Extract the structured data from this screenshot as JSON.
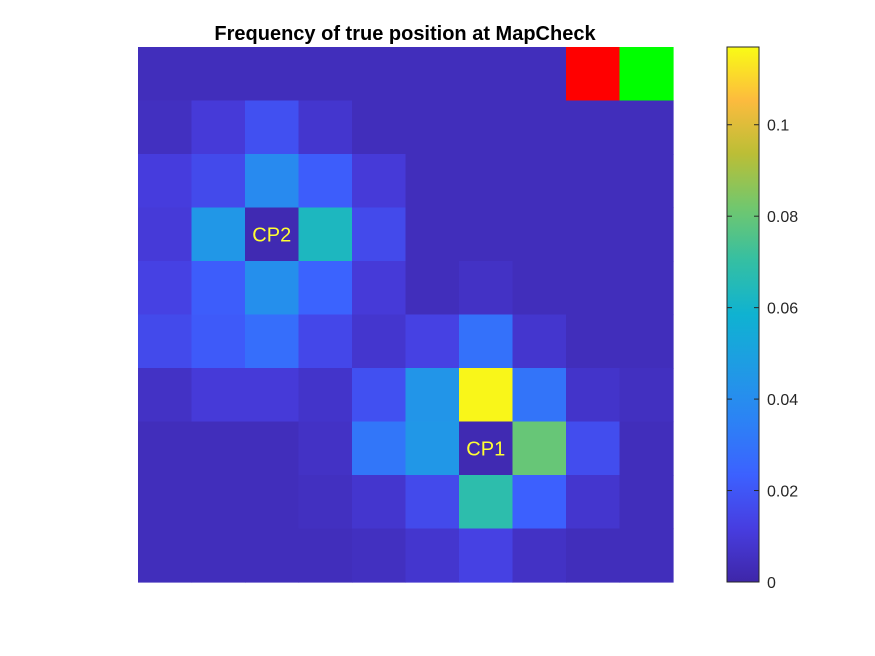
{
  "chart_data": {
    "type": "heatmap",
    "title": "Frequency of true position at MapCheck",
    "xlabel": "",
    "ylabel": "",
    "rows": 10,
    "cols": 10,
    "values": [
      [
        0.004,
        0.004,
        0.004,
        0.004,
        0.004,
        0.004,
        0.004,
        0.004,
        null,
        null
      ],
      [
        0.005,
        0.01,
        0.018,
        0.008,
        0.004,
        0.004,
        0.004,
        0.004,
        0.004,
        0.004
      ],
      [
        0.011,
        0.016,
        0.039,
        0.022,
        0.01,
        0.004,
        0.004,
        0.004,
        0.004,
        0.004
      ],
      [
        0.01,
        0.045,
        0.002,
        0.063,
        0.016,
        0.004,
        0.004,
        0.004,
        0.004,
        0.004
      ],
      [
        0.013,
        0.022,
        0.041,
        0.024,
        0.01,
        0.004,
        0.006,
        0.004,
        0.004,
        0.004
      ],
      [
        0.016,
        0.021,
        0.028,
        0.015,
        0.008,
        0.013,
        0.029,
        0.008,
        0.004,
        0.004
      ],
      [
        0.006,
        0.01,
        0.01,
        0.007,
        0.018,
        0.044,
        0.116,
        0.03,
        0.007,
        0.005
      ],
      [
        0.004,
        0.004,
        0.004,
        0.006,
        0.031,
        0.045,
        0.002,
        0.08,
        0.017,
        0.004
      ],
      [
        0.004,
        0.004,
        0.004,
        0.005,
        0.008,
        0.016,
        0.068,
        0.023,
        0.008,
        0.004
      ],
      [
        0.004,
        0.004,
        0.004,
        0.004,
        0.005,
        0.008,
        0.013,
        0.006,
        0.004,
        0.004
      ]
    ],
    "special_cells": [
      {
        "row": 0,
        "col": 8,
        "color": "#ff0000"
      },
      {
        "row": 0,
        "col": 9,
        "color": "#00ff00"
      }
    ],
    "annotations": [
      {
        "row": 3,
        "col": 2,
        "text": "CP2"
      },
      {
        "row": 7,
        "col": 6,
        "text": "CP1"
      }
    ],
    "annotation_color": "#ffff33",
    "colorbar": {
      "colormap": "parula",
      "min": 0,
      "max": 0.117,
      "ticks": [
        0,
        0.02,
        0.04,
        0.06,
        0.08,
        0.1
      ],
      "tick_labels": [
        "0",
        "0.02",
        "0.04",
        "0.06",
        "0.08",
        "0.1"
      ]
    },
    "grid": false,
    "legend": "none"
  }
}
